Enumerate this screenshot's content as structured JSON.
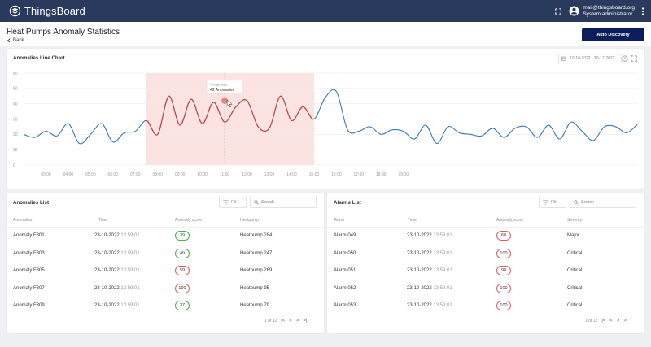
{
  "app": {
    "name": "ThingsBoard",
    "user_email": "mail@thingsboard.org",
    "user_role": "System administrator",
    "icons": {
      "logo": "thingsboard-logo-icon",
      "fullscreen": "fullscreen-icon",
      "account": "account-icon",
      "menu": "kebab-menu-icon"
    }
  },
  "page": {
    "title": "Heat Pumps Anomaly Statistics",
    "back_label": "Back",
    "auto_discovery_label": "Auto Discovery",
    "accent": "#0b1e5b"
  },
  "chart": {
    "title": "Anomalies Line Chart",
    "date_range": "10-10-2022 - 10-17-2022",
    "tooltip_label": "Heatpumps",
    "tooltip_value": "42 Anomalies",
    "line_color": "#3b78c0",
    "highlight_color": "#fbe3e1",
    "highlight_line_color": "#c9423c"
  },
  "chart_data": {
    "type": "line",
    "title": "Anomalies Line Chart",
    "xlabel": "",
    "ylabel": "",
    "ylim": [
      0,
      60
    ],
    "yticks": [
      0,
      10,
      20,
      30,
      40,
      50,
      60
    ],
    "x_tick_labels": [
      "03:00",
      "04:00",
      "05:00",
      "06:00",
      "07:00",
      "08:00",
      "09:00",
      "10:00",
      "11:00",
      "12:00",
      "13:00",
      "14:00",
      "15:00",
      "16:00",
      "17:00",
      "18:00",
      "19:00"
    ],
    "grid": true,
    "highlight_range": [
      "07:30",
      "15:00"
    ],
    "tooltip_point": {
      "x": "11:00",
      "y": 42
    },
    "series": [
      {
        "x": [
          2.0,
          2.5,
          3.0,
          3.5,
          4.0,
          4.5,
          5.0,
          5.5,
          6.0,
          6.5,
          7.0,
          7.5,
          8.0,
          8.5,
          9.0,
          9.5,
          10.0,
          10.5,
          11.0,
          11.5,
          12.0,
          12.5,
          13.0,
          13.5,
          14.0,
          14.5,
          15.0,
          15.5,
          16.0,
          16.5,
          17.0,
          17.5,
          18.0,
          18.5,
          19.0,
          19.5,
          20.0,
          20.5,
          21.0,
          21.5,
          22.0,
          22.5,
          23.0,
          23.5,
          24.0,
          24.5,
          25.0,
          25.5,
          26.0,
          26.5,
          27.0,
          27.5,
          28.0,
          28.5,
          29.0,
          29.5
        ],
        "values": [
          20,
          18,
          22,
          19,
          27,
          14,
          20,
          27,
          15,
          21,
          22,
          29,
          20,
          45,
          26,
          43,
          27,
          41,
          28,
          38,
          42,
          25,
          24,
          45,
          29,
          38,
          30,
          44,
          48,
          23,
          22,
          25,
          20,
          23,
          22,
          17,
          26,
          14,
          25,
          21,
          20,
          19,
          24,
          18,
          24,
          25,
          18,
          26,
          17,
          28,
          22,
          16,
          25,
          25,
          21,
          27
        ]
      }
    ]
  },
  "anomalies": {
    "title": "Anomalies List",
    "filter_label": "Filt",
    "search_placeholder": "Search",
    "columns": [
      "Anomalies",
      "Time",
      "Anomaly score",
      "Heatpump"
    ],
    "rows": [
      {
        "name": "Anomaly F301",
        "date": "23-10-2022",
        "time": "13:59:01",
        "score": "39",
        "score_level": "green",
        "pump": "Heatpump 284"
      },
      {
        "name": "Anomaly F303",
        "date": "23-10-2022",
        "time": "13:59:01",
        "score": "49",
        "score_level": "green",
        "pump": "Heatpump 247"
      },
      {
        "name": "Anomaly F305",
        "date": "23-10-2022",
        "time": "13:59:01",
        "score": "59",
        "score_level": "red",
        "pump": "Heatpump 269"
      },
      {
        "name": "Anomaly F307",
        "date": "23-10-2022",
        "time": "13:59:01",
        "score": "100",
        "score_level": "red",
        "pump": "Heatpump 95"
      },
      {
        "name": "Anomaly F309",
        "date": "23-10-2022",
        "time": "13:59:01",
        "score": "37",
        "score_level": "green",
        "pump": "Heatpump 79"
      }
    ],
    "pagination": "1 of 12"
  },
  "alarms": {
    "title": "Alarms List",
    "filter_label": "Filt",
    "search_placeholder": "Search",
    "columns": [
      "Alarm",
      "Time",
      "Anomaly score",
      "Severity"
    ],
    "rows": [
      {
        "name": "Alarm 049",
        "date": "23-10-2022",
        "time": "13:59:01",
        "score": "68",
        "severity": "Major"
      },
      {
        "name": "Alarm 050",
        "date": "23-10-2022",
        "time": "13:59:01",
        "score": "100",
        "severity": "Critical"
      },
      {
        "name": "Alarm 051",
        "date": "23-10-2022",
        "time": "13:59:01",
        "score": "98",
        "severity": "Critical"
      },
      {
        "name": "Alarm 052",
        "date": "23-10-2022",
        "time": "13:59:01",
        "score": "100",
        "severity": "Critical"
      },
      {
        "name": "Alarm 053",
        "date": "23-10-2022",
        "time": "13:59:01",
        "score": "100",
        "severity": "Critical"
      }
    ],
    "pagination": "1 of 12"
  }
}
